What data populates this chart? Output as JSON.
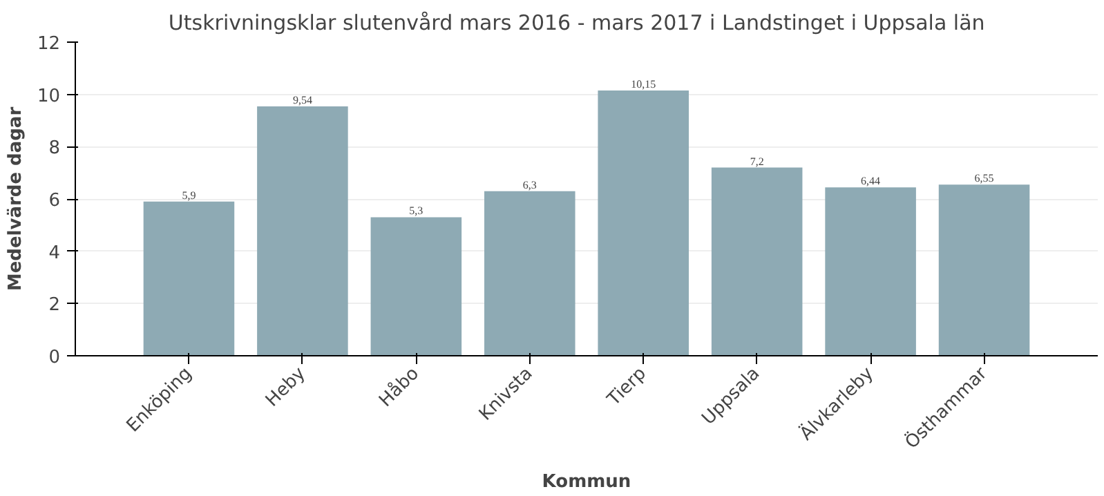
{
  "chart_data": {
    "type": "bar",
    "title": "Utskrivningsklar slutenvård mars 2016 - mars 2017 i    Landstinget i Uppsala län",
    "xlabel": "Kommun",
    "ylabel": "Medelvärde dagar",
    "categories": [
      "Enköping",
      "Heby",
      "Håbo",
      "Knivsta",
      "Tierp",
      "Uppsala",
      "Älvkarleby",
      "Östhammar"
    ],
    "values": [
      5.9,
      9.54,
      5.3,
      6.3,
      10.15,
      7.2,
      6.44,
      6.55
    ],
    "value_labels": [
      "5,9",
      "9,54",
      "5,3",
      "6,3",
      "10,15",
      "7,2",
      "6,44",
      "6,55"
    ],
    "color": "#8eaab4",
    "ylim": [
      0,
      12
    ],
    "yticks": [
      0,
      2,
      4,
      6,
      8,
      10,
      12
    ],
    "grid": "y"
  }
}
